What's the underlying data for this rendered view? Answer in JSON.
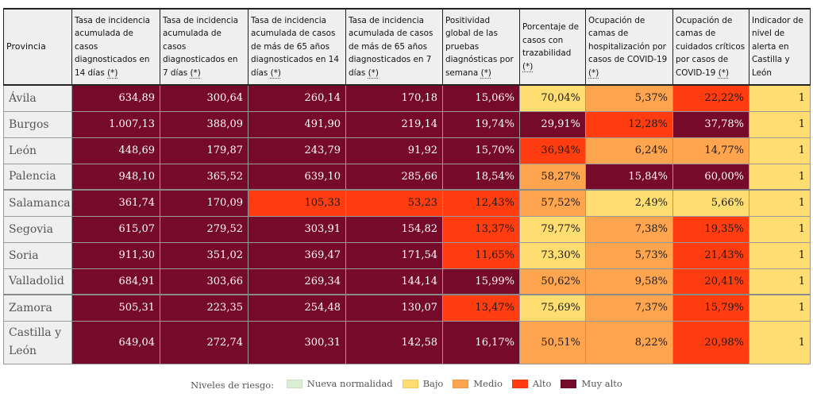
{
  "colors": {
    "nueva_normalidad": "#dcefd4",
    "bajo": "#ffdd71",
    "medio": "#ffa54f",
    "alto": "#ff3d10",
    "muy_alto": "#760a2a"
  },
  "table": {
    "headers": [
      {
        "text": "Provincia",
        "note": ""
      },
      {
        "text": "Tasa de incidencia acumulada de casos diagnosticados en 14 días ",
        "note": "(*)"
      },
      {
        "text": "Tasa de incidencia acumulada de casos diagnosticados en 7 días ",
        "note": "(*)"
      },
      {
        "text": "Tasa de incidencia acumulada de casos de más de 65 años diagnosticados en 14 días ",
        "note": "(*)"
      },
      {
        "text": "Tasa de incidencia acumulada de casos de más de 65 años diagnosticados en 7 días ",
        "note": "(*)"
      },
      {
        "text": "Positividad global de las pruebas diagnósticas por semana ",
        "note": "(*)"
      },
      {
        "text": "Porcentaje de casos con trazabilidad ",
        "note": "(*)"
      },
      {
        "text": "Ocupación de camas de hospitalización por casos de COVID-19 ",
        "note": "(*)"
      },
      {
        "text": "Ocupación de camas de cuidados críticos por casos de COVID-19 ",
        "note": "(*)"
      },
      {
        "text": "Indicador de nivel de alerta en Castilla y León",
        "note": ""
      }
    ],
    "rows": [
      {
        "provincia": "Ávila",
        "cells": [
          {
            "value": "634,89",
            "level": "muy_alto"
          },
          {
            "value": "300,64",
            "level": "muy_alto"
          },
          {
            "value": "260,14",
            "level": "muy_alto"
          },
          {
            "value": "170,18",
            "level": "muy_alto"
          },
          {
            "value": "15,06%",
            "level": "muy_alto"
          },
          {
            "value": "70,04%",
            "level": "bajo"
          },
          {
            "value": "5,37%",
            "level": "medio"
          },
          {
            "value": "22,22%",
            "level": "alto"
          },
          {
            "value": "1",
            "level": "bajo"
          }
        ]
      },
      {
        "provincia": "Burgos",
        "cells": [
          {
            "value": "1.007,13",
            "level": "muy_alto"
          },
          {
            "value": "388,09",
            "level": "muy_alto"
          },
          {
            "value": "491,90",
            "level": "muy_alto"
          },
          {
            "value": "219,14",
            "level": "muy_alto"
          },
          {
            "value": "19,74%",
            "level": "muy_alto"
          },
          {
            "value": "29,91%",
            "level": "muy_alto"
          },
          {
            "value": "12,28%",
            "level": "alto"
          },
          {
            "value": "37,78%",
            "level": "muy_alto"
          },
          {
            "value": "1",
            "level": "bajo"
          }
        ]
      },
      {
        "provincia": "León",
        "cells": [
          {
            "value": "448,69",
            "level": "muy_alto"
          },
          {
            "value": "179,87",
            "level": "muy_alto"
          },
          {
            "value": "243,79",
            "level": "muy_alto"
          },
          {
            "value": "91,92",
            "level": "muy_alto"
          },
          {
            "value": "15,70%",
            "level": "muy_alto"
          },
          {
            "value": "36,94%",
            "level": "alto"
          },
          {
            "value": "6,24%",
            "level": "medio"
          },
          {
            "value": "14,77%",
            "level": "medio"
          },
          {
            "value": "1",
            "level": "bajo"
          }
        ]
      },
      {
        "provincia": "Palencia",
        "cells": [
          {
            "value": "948,10",
            "level": "muy_alto"
          },
          {
            "value": "365,52",
            "level": "muy_alto"
          },
          {
            "value": "639,10",
            "level": "muy_alto"
          },
          {
            "value": "285,66",
            "level": "muy_alto"
          },
          {
            "value": "18,54%",
            "level": "muy_alto"
          },
          {
            "value": "58,27%",
            "level": "medio"
          },
          {
            "value": "15,84%",
            "level": "muy_alto"
          },
          {
            "value": "60,00%",
            "level": "muy_alto"
          },
          {
            "value": "1",
            "level": "bajo"
          }
        ]
      },
      {
        "provincia": "Salamanca",
        "cells": [
          {
            "value": "361,74",
            "level": "muy_alto"
          },
          {
            "value": "170,09",
            "level": "muy_alto"
          },
          {
            "value": "105,33",
            "level": "alto"
          },
          {
            "value": "53,23",
            "level": "alto"
          },
          {
            "value": "12,43%",
            "level": "alto"
          },
          {
            "value": "57,52%",
            "level": "medio"
          },
          {
            "value": "2,49%",
            "level": "bajo"
          },
          {
            "value": "5,66%",
            "level": "bajo"
          },
          {
            "value": "1",
            "level": "bajo"
          }
        ]
      },
      {
        "provincia": "Segovia",
        "cells": [
          {
            "value": "615,07",
            "level": "muy_alto"
          },
          {
            "value": "279,52",
            "level": "muy_alto"
          },
          {
            "value": "303,91",
            "level": "muy_alto"
          },
          {
            "value": "154,82",
            "level": "muy_alto"
          },
          {
            "value": "13,37%",
            "level": "alto"
          },
          {
            "value": "79,77%",
            "level": "bajo"
          },
          {
            "value": "7,38%",
            "level": "medio"
          },
          {
            "value": "19,35%",
            "level": "alto"
          },
          {
            "value": "1",
            "level": "bajo"
          }
        ]
      },
      {
        "provincia": "Soria",
        "cells": [
          {
            "value": "911,30",
            "level": "muy_alto"
          },
          {
            "value": "351,02",
            "level": "muy_alto"
          },
          {
            "value": "369,47",
            "level": "muy_alto"
          },
          {
            "value": "171,54",
            "level": "muy_alto"
          },
          {
            "value": "11,65%",
            "level": "alto"
          },
          {
            "value": "73,30%",
            "level": "bajo"
          },
          {
            "value": "5,73%",
            "level": "medio"
          },
          {
            "value": "21,43%",
            "level": "alto"
          },
          {
            "value": "1",
            "level": "bajo"
          }
        ]
      },
      {
        "provincia": "Valladolid",
        "cells": [
          {
            "value": "684,91",
            "level": "muy_alto"
          },
          {
            "value": "303,66",
            "level": "muy_alto"
          },
          {
            "value": "269,34",
            "level": "muy_alto"
          },
          {
            "value": "144,14",
            "level": "muy_alto"
          },
          {
            "value": "15,99%",
            "level": "muy_alto"
          },
          {
            "value": "50,62%",
            "level": "medio"
          },
          {
            "value": "9,58%",
            "level": "medio"
          },
          {
            "value": "20,41%",
            "level": "alto"
          },
          {
            "value": "1",
            "level": "bajo"
          }
        ]
      },
      {
        "provincia": "Zamora",
        "cells": [
          {
            "value": "505,31",
            "level": "muy_alto"
          },
          {
            "value": "223,35",
            "level": "muy_alto"
          },
          {
            "value": "254,48",
            "level": "muy_alto"
          },
          {
            "value": "130,07",
            "level": "muy_alto"
          },
          {
            "value": "13,47%",
            "level": "alto"
          },
          {
            "value": "75,69%",
            "level": "bajo"
          },
          {
            "value": "7,37%",
            "level": "medio"
          },
          {
            "value": "15,79%",
            "level": "alto"
          },
          {
            "value": "1",
            "level": "bajo"
          }
        ]
      },
      {
        "provincia": "Castilla y León",
        "cells": [
          {
            "value": "649,04",
            "level": "muy_alto"
          },
          {
            "value": "272,74",
            "level": "muy_alto"
          },
          {
            "value": "300,31",
            "level": "muy_alto"
          },
          {
            "value": "142,58",
            "level": "muy_alto"
          },
          {
            "value": "16,17%",
            "level": "muy_alto"
          },
          {
            "value": "50,51%",
            "level": "medio"
          },
          {
            "value": "8,22%",
            "level": "medio"
          },
          {
            "value": "20,98%",
            "level": "alto"
          },
          {
            "value": "1",
            "level": "bajo"
          }
        ]
      }
    ]
  },
  "legend": {
    "label": "Niveles de riesgo:",
    "items": [
      {
        "label": "Nueva normalidad",
        "level": "nueva_normalidad"
      },
      {
        "label": "Bajo",
        "level": "bajo"
      },
      {
        "label": "Medio",
        "level": "medio"
      },
      {
        "label": "Alto",
        "level": "alto"
      },
      {
        "label": "Muy alto",
        "level": "muy_alto"
      }
    ]
  }
}
